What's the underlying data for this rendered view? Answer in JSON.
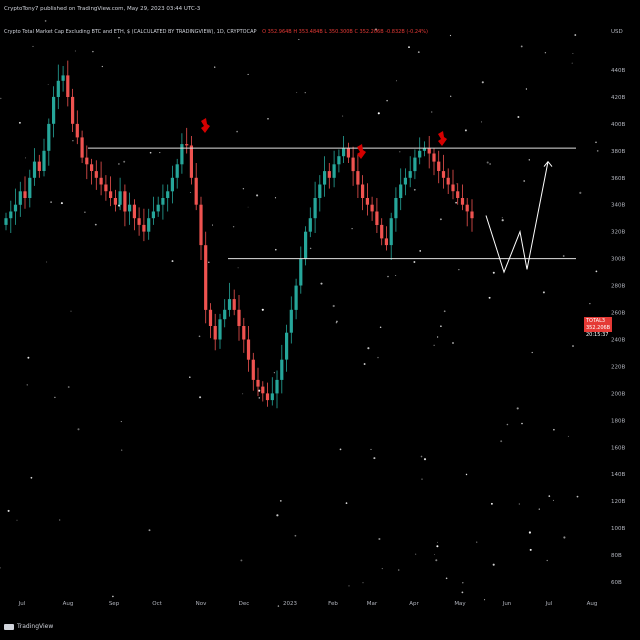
{
  "header": {
    "published": "CryptoTony7 published on TradingView.com, May 29, 2023 03:44 UTC-3"
  },
  "symbol": {
    "name": "Crypto Total Market Cap Excluding BTC and ETH, $ (CALCULATED BY TRADINGVIEW), 1D, CRYPTOCAP",
    "values": "O 352.964B H 353.484B L 350.300B C 352.206B -0.832B (-0.24%)"
  },
  "currency": "USD",
  "price_tag": {
    "label": "TOTAL3",
    "value": "352.206B",
    "countdown": "20:15:37"
  },
  "branding": {
    "logo_text": "TradingView"
  },
  "colors": {
    "background": "#000000",
    "up": "#26a69a",
    "down": "#ef5350",
    "lines": "#e0e0e0",
    "arrows": "#d50000",
    "price_tag": "#e53935"
  },
  "chart_data": {
    "type": "candlestick",
    "y_ticks": [
      "USD",
      "440B",
      "420B",
      "400B",
      "380B",
      "360B",
      "340B",
      "320B",
      "300B",
      "280B",
      "260B",
      "240B",
      "220B",
      "200B",
      "180B",
      "160B",
      "140B",
      "120B",
      "100B",
      "80B",
      "60B"
    ],
    "x_ticks": [
      "Jul",
      "Aug",
      "Sep",
      "Oct",
      "Nov",
      "Dec",
      "2023",
      "Feb",
      "Mar",
      "Apr",
      "May",
      "Jun",
      "Jul",
      "Aug"
    ],
    "levels": [
      {
        "name": "resistance",
        "value": 382
      },
      {
        "name": "support",
        "value": 300
      }
    ],
    "annotations": [
      {
        "type": "down-arrow",
        "at": "Nov"
      },
      {
        "type": "down-arrow",
        "at": "Mar"
      },
      {
        "type": "down-arrow",
        "at": "Apr"
      }
    ],
    "projection_path_close_values": [
      332,
      290,
      320,
      292,
      372
    ],
    "series_close_approx": [
      330,
      335,
      340,
      350,
      345,
      360,
      372,
      365,
      380,
      400,
      420,
      432,
      436,
      420,
      400,
      390,
      375,
      370,
      365,
      360,
      355,
      350,
      345,
      340,
      350,
      335,
      340,
      330,
      325,
      320,
      330,
      335,
      340,
      345,
      350,
      360,
      370,
      385,
      384,
      360,
      340,
      310,
      262,
      250,
      240,
      255,
      262,
      270,
      262,
      250,
      240,
      225,
      210,
      205,
      200,
      195,
      200,
      210,
      225,
      245,
      262,
      280,
      300,
      320,
      330,
      345,
      355,
      365,
      360,
      370,
      376,
      382,
      375,
      365,
      355,
      345,
      340,
      335,
      325,
      315,
      310,
      330,
      345,
      355,
      360,
      365,
      375,
      380,
      382,
      378,
      372,
      365,
      360,
      355,
      350,
      345,
      340,
      335,
      330
    ]
  }
}
